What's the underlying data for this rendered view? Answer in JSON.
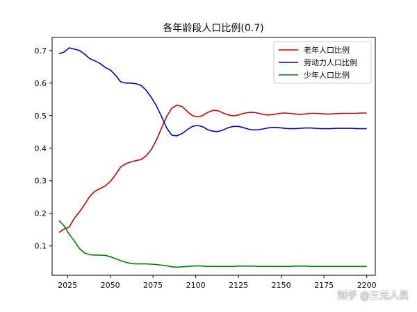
{
  "chart_data": {
    "type": "line",
    "title": "各年龄段人口比例(0.7)",
    "xlabel": "",
    "ylabel": "",
    "xlim": [
      2016,
      2205
    ],
    "ylim": [
      0.01,
      0.74
    ],
    "xticks": [
      2025,
      2050,
      2075,
      2100,
      2125,
      2150,
      2175,
      2200
    ],
    "yticks": [
      0.1,
      0.2,
      0.3,
      0.4,
      0.5,
      0.6,
      0.7
    ],
    "grid": false,
    "legend_position": "top-right",
    "series": [
      {
        "name": "老年人口比例",
        "color": "#cc0000",
        "x": [
          2020,
          2023,
          2026,
          2029,
          2032,
          2035,
          2038,
          2041,
          2044,
          2047,
          2050,
          2053,
          2056,
          2059,
          2062,
          2065,
          2068,
          2071,
          2074,
          2077,
          2080,
          2083,
          2086,
          2089,
          2092,
          2095,
          2098,
          2101,
          2104,
          2107,
          2110,
          2113,
          2116,
          2119,
          2122,
          2125,
          2128,
          2131,
          2134,
          2137,
          2140,
          2143,
          2146,
          2149,
          2152,
          2155,
          2158,
          2161,
          2164,
          2167,
          2170,
          2173,
          2176,
          2179,
          2182,
          2185,
          2188,
          2191,
          2194,
          2197,
          2200
        ],
        "y": [
          0.141,
          0.152,
          0.158,
          0.185,
          0.205,
          0.227,
          0.252,
          0.268,
          0.276,
          0.284,
          0.298,
          0.318,
          0.342,
          0.352,
          0.358,
          0.362,
          0.365,
          0.377,
          0.396,
          0.425,
          0.462,
          0.497,
          0.523,
          0.532,
          0.528,
          0.513,
          0.5,
          0.496,
          0.5,
          0.51,
          0.516,
          0.515,
          0.508,
          0.502,
          0.499,
          0.502,
          0.507,
          0.51,
          0.51,
          0.507,
          0.503,
          0.502,
          0.504,
          0.507,
          0.508,
          0.507,
          0.505,
          0.504,
          0.505,
          0.507,
          0.507,
          0.506,
          0.505,
          0.505,
          0.506,
          0.507,
          0.507,
          0.507,
          0.507,
          0.508,
          0.508
        ]
      },
      {
        "name": "劳动力人口比例",
        "color": "#0000cc",
        "x": [
          2020,
          2023,
          2026,
          2029,
          2032,
          2035,
          2038,
          2041,
          2044,
          2047,
          2050,
          2053,
          2056,
          2059,
          2062,
          2065,
          2068,
          2071,
          2074,
          2077,
          2080,
          2083,
          2086,
          2089,
          2092,
          2095,
          2098,
          2101,
          2104,
          2107,
          2110,
          2113,
          2116,
          2119,
          2122,
          2125,
          2128,
          2131,
          2134,
          2137,
          2140,
          2143,
          2146,
          2149,
          2152,
          2155,
          2158,
          2161,
          2164,
          2167,
          2170,
          2173,
          2176,
          2179,
          2182,
          2185,
          2188,
          2191,
          2194,
          2197,
          2200
        ],
        "y": [
          0.69,
          0.695,
          0.708,
          0.704,
          0.7,
          0.689,
          0.675,
          0.668,
          0.66,
          0.648,
          0.64,
          0.625,
          0.604,
          0.6,
          0.6,
          0.598,
          0.593,
          0.578,
          0.556,
          0.53,
          0.497,
          0.462,
          0.44,
          0.438,
          0.445,
          0.457,
          0.467,
          0.47,
          0.466,
          0.457,
          0.452,
          0.451,
          0.456,
          0.463,
          0.467,
          0.467,
          0.463,
          0.458,
          0.456,
          0.457,
          0.46,
          0.463,
          0.464,
          0.463,
          0.461,
          0.46,
          0.46,
          0.461,
          0.462,
          0.462,
          0.461,
          0.46,
          0.46,
          0.46,
          0.461,
          0.461,
          0.461,
          0.461,
          0.46,
          0.46,
          0.46
        ]
      },
      {
        "name": "少年人口比例",
        "color": "#008000",
        "x": [
          2020,
          2023,
          2026,
          2029,
          2032,
          2035,
          2038,
          2041,
          2044,
          2047,
          2050,
          2053,
          2056,
          2059,
          2062,
          2065,
          2068,
          2071,
          2074,
          2077,
          2080,
          2083,
          2086,
          2089,
          2092,
          2095,
          2098,
          2101,
          2104,
          2107,
          2110,
          2113,
          2116,
          2119,
          2122,
          2125,
          2128,
          2131,
          2134,
          2137,
          2140,
          2143,
          2146,
          2149,
          2152,
          2155,
          2158,
          2161,
          2164,
          2167,
          2170,
          2173,
          2176,
          2179,
          2182,
          2185,
          2188,
          2191,
          2194,
          2197,
          2200
        ],
        "y": [
          0.178,
          0.162,
          0.136,
          0.115,
          0.092,
          0.078,
          0.073,
          0.072,
          0.072,
          0.071,
          0.067,
          0.061,
          0.055,
          0.05,
          0.046,
          0.045,
          0.045,
          0.045,
          0.044,
          0.043,
          0.041,
          0.039,
          0.036,
          0.035,
          0.036,
          0.037,
          0.038,
          0.039,
          0.038,
          0.037,
          0.037,
          0.037,
          0.037,
          0.037,
          0.037,
          0.038,
          0.038,
          0.038,
          0.038,
          0.037,
          0.037,
          0.037,
          0.037,
          0.037,
          0.037,
          0.037,
          0.038,
          0.038,
          0.038,
          0.037,
          0.037,
          0.037,
          0.037,
          0.037,
          0.037,
          0.037,
          0.037,
          0.037,
          0.037,
          0.037,
          0.037
        ]
      }
    ]
  },
  "watermark": "知乎 @三元人员"
}
